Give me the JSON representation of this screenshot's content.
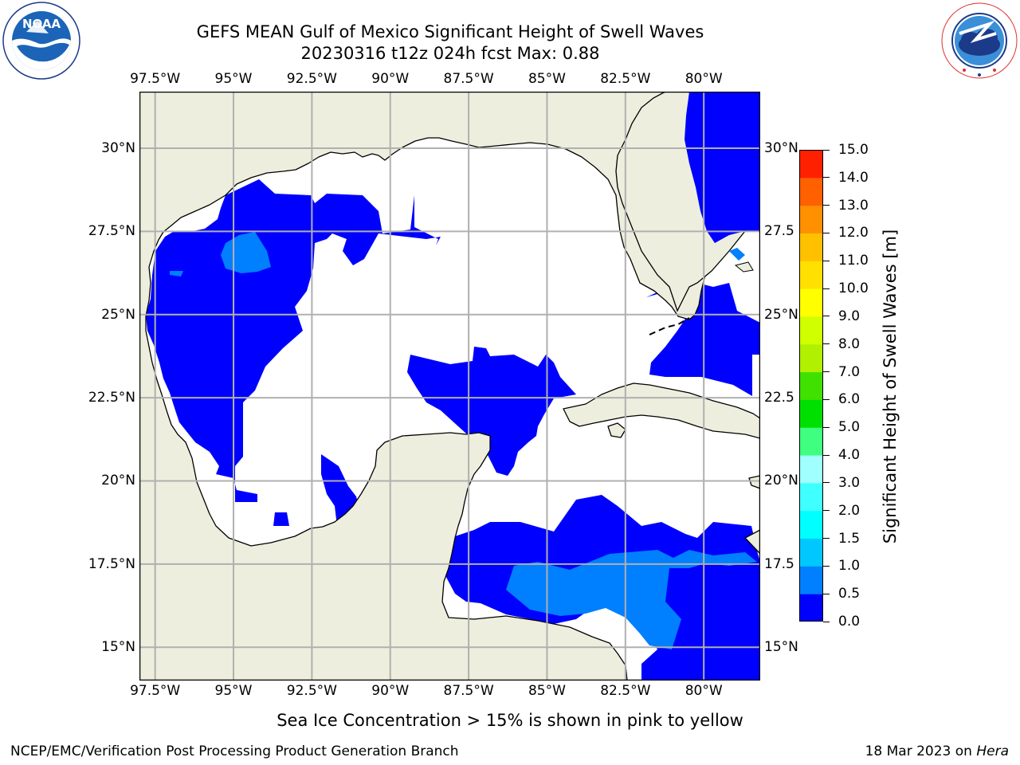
{
  "title": {
    "line1": "GEFS MEAN Gulf of Mexico Significant Height of Swell Waves",
    "line2": "20230316 t12z 024h fcst   Max: 0.88"
  },
  "logos": {
    "left": {
      "icon": "noaa-logo",
      "text": "NOAA",
      "ring_text": "NATIONAL OCEANIC AND ATMOSPHERIC ADMINISTRATION · U.S. DEPARTMENT OF COMMERCE"
    },
    "right": {
      "icon": "nws-logo",
      "ring_text": "NATIONAL WEATHER SERVICE"
    }
  },
  "map": {
    "lon_ticks": [
      "97.5°W",
      "95°W",
      "92.5°W",
      "90°W",
      "87.5°W",
      "85°W",
      "82.5°W",
      "80°W"
    ],
    "lon_values": [
      -97.5,
      -95,
      -92.5,
      -90,
      -87.5,
      -85,
      -82.5,
      -80
    ],
    "lat_ticks_left": [
      "30°N",
      "27.5°N",
      "25°N",
      "22.5°N",
      "20°N",
      "17.5°N",
      "15°N"
    ],
    "lat_ticks_right": [
      "30°N",
      "27.5",
      "25°N",
      "22.5",
      "20°N",
      "17.5",
      "15°N"
    ],
    "lat_values": [
      30,
      27.5,
      25,
      22.5,
      20,
      17.5,
      15
    ],
    "lon_range": [
      -98,
      -78.2
    ],
    "lat_range": [
      14,
      31.7
    ],
    "colors": {
      "land": "#eeeede",
      "ocean_below_min": "#ffffff",
      "coast": "#000000",
      "grid": "#b0b0b0"
    }
  },
  "colorbar": {
    "label": "Significant Height of Swell Waves [m]",
    "ticks": [
      "15.0",
      "14.0",
      "13.0",
      "12.0",
      "11.0",
      "10.0",
      "9.0",
      "8.0",
      "7.0",
      "6.0",
      "5.0",
      "4.0",
      "3.0",
      "2.0",
      "1.5",
      "1.0",
      "0.5",
      "0.0"
    ],
    "levels": [
      0,
      0.5,
      1.0,
      1.5,
      2.0,
      3.0,
      4.0,
      5.0,
      6.0,
      7.0,
      8.0,
      9.0,
      10.0,
      11.0,
      12.0,
      13.0,
      14.0,
      15.0
    ],
    "colors": [
      "#0000ff",
      "#0080ff",
      "#00c8ff",
      "#00ffff",
      "#40ffff",
      "#a0ffff",
      "#40ff80",
      "#00e000",
      "#40e000",
      "#b0f000",
      "#d0ff00",
      "#ffff00",
      "#ffe000",
      "#ffc000",
      "#ff9000",
      "#ff6000",
      "#ff2000"
    ]
  },
  "note": "Sea Ice Concentration > 15% is shown in pink to yellow",
  "footer": {
    "left": "NCEP/EMC/Verification Post Processing Product Generation Branch",
    "right_prefix": "18 Mar 2023 on ",
    "right_machine": "Hera"
  }
}
